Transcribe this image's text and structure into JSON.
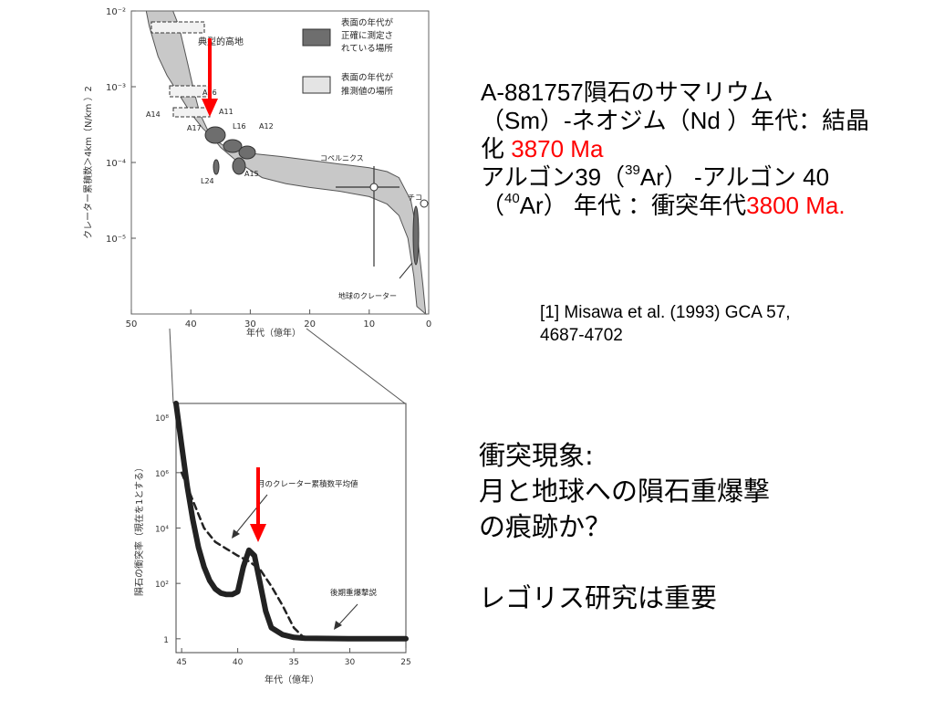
{
  "chart_data": [
    {
      "type": "area",
      "ylabel": "クレーター累積数＞4km（N/km ）2",
      "xlabel": "年代（億年）",
      "x_ticks": [
        "50",
        "40",
        "30",
        "20",
        "10",
        "0"
      ],
      "y_ticks": [
        "10⁻²",
        "10⁻³",
        "10⁻⁴",
        "10⁻⁵"
      ],
      "xlim": [
        50,
        0
      ],
      "ylim_log10": [
        -6,
        -2
      ],
      "band_upper": [
        [
          47.5,
          -2.0
        ],
        [
          47,
          -2.2
        ],
        [
          45.5,
          -2.6
        ],
        [
          44,
          -2.85
        ],
        [
          42,
          -3.1
        ],
        [
          40,
          -3.35
        ],
        [
          38,
          -3.55
        ],
        [
          36,
          -3.7
        ],
        [
          34,
          -3.8
        ],
        [
          30,
          -3.88
        ],
        [
          25,
          -3.92
        ],
        [
          20,
          -3.97
        ],
        [
          15,
          -4.02
        ],
        [
          10,
          -4.07
        ],
        [
          7,
          -4.12
        ],
        [
          5,
          -4.2
        ],
        [
          3,
          -4.5
        ],
        [
          2,
          -4.9
        ],
        [
          1,
          -5.6
        ],
        [
          0.5,
          -6.0
        ]
      ],
      "band_lower": [
        [
          43,
          -2.0
        ],
        [
          42,
          -2.2
        ],
        [
          40.5,
          -2.7
        ],
        [
          39.5,
          -3.05
        ],
        [
          38.5,
          -3.35
        ],
        [
          37,
          -3.6
        ],
        [
          35,
          -3.8
        ],
        [
          32,
          -4.0
        ],
        [
          28,
          -4.2
        ],
        [
          24,
          -4.28
        ],
        [
          20,
          -4.33
        ],
        [
          15,
          -4.38
        ],
        [
          10,
          -4.45
        ],
        [
          7,
          -4.55
        ],
        [
          5,
          -4.7
        ],
        [
          3.5,
          -5.0
        ],
        [
          2.5,
          -5.5
        ],
        [
          2,
          -5.9
        ]
      ],
      "points": [
        {
          "label": "A11",
          "age": 36.5,
          "log_n": -3.75
        },
        {
          "label": "A12",
          "age": 31.5,
          "log_n": -3.85
        },
        {
          "label": "A14",
          "age": 38.5,
          "log_n": -3.45
        },
        {
          "label": "A15",
          "age": 32.5,
          "log_n": -4.0
        },
        {
          "label": "A16",
          "age": 39,
          "log_n": -3.1
        },
        {
          "label": "A17",
          "age": 37.5,
          "log_n": -3.55
        },
        {
          "label": "L16",
          "age": 33.5,
          "log_n": -3.82
        },
        {
          "label": "L24",
          "age": 35.5,
          "log_n": -4.08
        },
        {
          "label": "コペルニクス",
          "age": 9,
          "log_n": -4.35
        },
        {
          "label": "チコ",
          "age": 0.5,
          "log_n": -4.55
        }
      ],
      "legend": [
        {
          "label": "表面の年代が正確に測定されている場所",
          "color": "#6e6e6e"
        },
        {
          "label": "表面の年代が推測値の場所",
          "color": "#e4e4e4"
        }
      ],
      "annotations": [
        "典型的高地",
        "地球のクレーター"
      ],
      "arrow_at_age": 37
    },
    {
      "type": "line",
      "ylabel": "隕石の衝突率（現在を1とする）",
      "xlabel": "年代（億年）",
      "x_ticks": [
        "45",
        "40",
        "35",
        "30",
        "25"
      ],
      "y_ticks": [
        "10⁸",
        "10⁶",
        "10⁴",
        "10²",
        "1"
      ],
      "xlim": [
        45.5,
        25
      ],
      "ylim_log10": [
        -0.5,
        8.5
      ],
      "series": [
        {
          "name": "後期重爆撃説",
          "x": [
            45.5,
            45,
            44.5,
            44,
            43.5,
            43,
            42.5,
            42,
            41.5,
            41,
            40.5,
            40,
            39.5,
            39,
            38.5,
            38,
            37.5,
            37,
            36,
            35,
            34,
            32,
            30,
            28,
            25
          ],
          "values": [
            8.5,
            7.0,
            5.5,
            4.3,
            3.3,
            2.6,
            2.1,
            1.8,
            1.65,
            1.6,
            1.6,
            1.7,
            2.6,
            3.2,
            3.0,
            2.0,
            1.0,
            0.4,
            0.15,
            0.05,
            0.02,
            0.01,
            0.0,
            0.0,
            0.0
          ]
        },
        {
          "name": "月のクレーター累積数平均値",
          "x": [
            45,
            44,
            43,
            42,
            41,
            40,
            39,
            38,
            37,
            36,
            35,
            34
          ],
          "values": [
            6.0,
            5.0,
            4.0,
            3.5,
            3.25,
            3.0,
            2.8,
            2.5,
            1.9,
            1.2,
            0.4,
            0.0
          ]
        }
      ],
      "annotations": [
        "月のクレーター累積数平均値",
        "後期重爆撃説"
      ],
      "arrow_at_age": 38.8
    }
  ],
  "text": {
    "heading_line1": "A-881757隕石のサマリウム",
    "heading_line2": "（Sm）-ネオジム（Nd ）年代：結晶",
    "heading_line3_a": "化 ",
    "heading_line3_b": "3870 Ma",
    "line4_a": "アルゴン39（",
    "line4_sup": "39",
    "line4_b": "Ar） -アルゴン 40",
    "line5_a": "（",
    "line5_sup": "40",
    "line5_b": "Ar） 年代 ：衝突年代",
    "line5_c": "3800 Ma.",
    "ref_line1": "[1] Misawa et al. (1993) GCA 57,",
    "ref_line2": "4687-4702",
    "big1": "衝突現象:",
    "big2": "月と地球への隕石重爆撃",
    "big3": "の痕跡か？",
    "big4": "レゴリス研究は重要"
  }
}
